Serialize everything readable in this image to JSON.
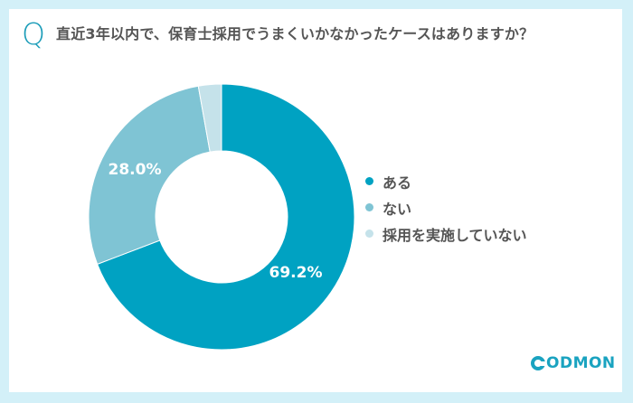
{
  "question": {
    "mark": "Q",
    "text": "直近3年以内で、保育士採用でうまくいかなかったケースはありますか？"
  },
  "colors": {
    "background": "#d3f0f8",
    "card": "#ffffff",
    "accent": "#1a9cb8"
  },
  "legend": [
    {
      "label": "ある",
      "color": "#00a2c2"
    },
    {
      "label": "ない",
      "color": "#7fc4d4"
    },
    {
      "label": "採用を実施していない",
      "color": "#c5e2ea"
    }
  ],
  "labels": {
    "aru": "69.2%",
    "nai": "28.0%"
  },
  "logo": {
    "text": "ODMON"
  },
  "chart_data": {
    "type": "pie",
    "donut": true,
    "title": "直近3年以内で、保育士採用でうまくいかなかったケースはありますか？",
    "categories": [
      "ある",
      "ない",
      "採用を実施していない"
    ],
    "values": [
      69.2,
      28.0,
      2.8
    ],
    "unit": "%",
    "colors": [
      "#00a2c2",
      "#7fc4d4",
      "#c5e2ea"
    ],
    "data_labels": [
      "69.2%",
      "28.0%",
      ""
    ],
    "start_angle": "12 o'clock, clockwise",
    "legend_position": "right"
  }
}
